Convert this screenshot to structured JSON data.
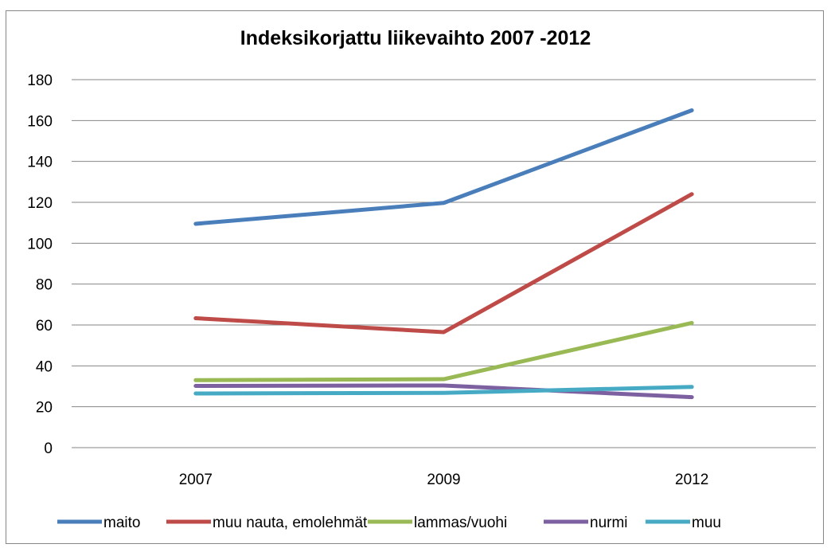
{
  "chart_data": {
    "type": "line",
    "title": "Indeksikorjattu liikevaihto 2007 -2012",
    "xlabel": "",
    "ylabel": "",
    "categories": [
      "2007",
      "2009",
      "2012"
    ],
    "ylim": [
      0,
      180
    ],
    "yticks": [
      "0",
      "20",
      "40",
      "60",
      "80",
      "100",
      "120",
      "140",
      "160",
      "180"
    ],
    "grid": true,
    "legend_position": "bottom",
    "series": [
      {
        "name": "maito",
        "values": [
          109.5,
          119.7,
          165
        ],
        "color": "#4a7ebb"
      },
      {
        "name": "muu nauta, emolehmät",
        "values": [
          63.3,
          56.5,
          124
        ],
        "color": "#be4b48"
      },
      {
        "name": "lammas/vuohi",
        "values": [
          33,
          33.5,
          61
        ],
        "color": "#98b954"
      },
      {
        "name": "nurmi",
        "values": [
          30.2,
          30.4,
          24.7
        ],
        "color": "#7d60a0"
      },
      {
        "name": "muu",
        "values": [
          26.5,
          26.8,
          29.7
        ],
        "color": "#46aac5"
      }
    ]
  }
}
